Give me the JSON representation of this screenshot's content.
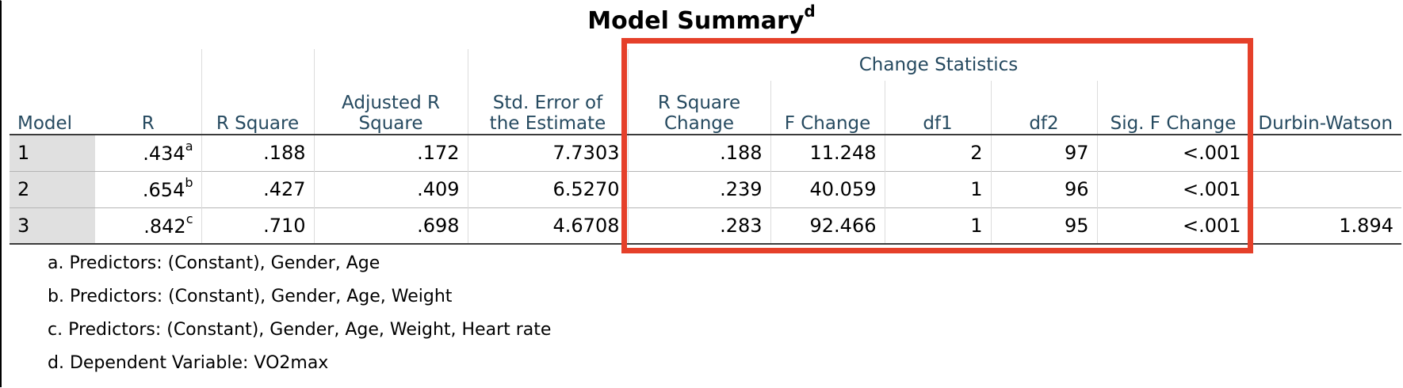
{
  "title": "Model Summary",
  "title_sup": "d",
  "group_header": "Change Statistics",
  "columns": {
    "model": "Model",
    "r": "R",
    "r_square": "R Square",
    "adjusted_r_square": "Adjusted R Square",
    "std_error": "Std. Error of the Estimate",
    "r_square_change": "R Square Change",
    "f_change": "F Change",
    "df1": "df1",
    "df2": "df2",
    "sig_f_change": "Sig. F Change",
    "durbin_watson": "Durbin-Watson"
  },
  "rows": [
    {
      "model": "1",
      "r": ".434",
      "r_sup": "a",
      "r_square": ".188",
      "adjusted_r_square": ".172",
      "std_error": "7.7303",
      "r_square_change": ".188",
      "f_change": "11.248",
      "df1": "2",
      "df2": "97",
      "sig_f_change": "<.001",
      "durbin_watson": ""
    },
    {
      "model": "2",
      "r": ".654",
      "r_sup": "b",
      "r_square": ".427",
      "adjusted_r_square": ".409",
      "std_error": "6.5270",
      "r_square_change": ".239",
      "f_change": "40.059",
      "df1": "1",
      "df2": "96",
      "sig_f_change": "<.001",
      "durbin_watson": ""
    },
    {
      "model": "3",
      "r": ".842",
      "r_sup": "c",
      "r_square": ".710",
      "adjusted_r_square": ".698",
      "std_error": "4.6708",
      "r_square_change": ".283",
      "f_change": "92.466",
      "df1": "1",
      "df2": "95",
      "sig_f_change": "<.001",
      "durbin_watson": "1.894"
    }
  ],
  "footnotes": [
    "a. Predictors: (Constant), Gender, Age",
    "b. Predictors: (Constant), Gender, Age, Weight",
    "c. Predictors: (Constant), Gender, Age, Weight, Heart rate",
    "d. Dependent Variable: VO2max"
  ],
  "colors": {
    "header_text": "#264a60",
    "model_cell_bg": "#e0e0e0",
    "highlight_border": "#e5402a"
  }
}
